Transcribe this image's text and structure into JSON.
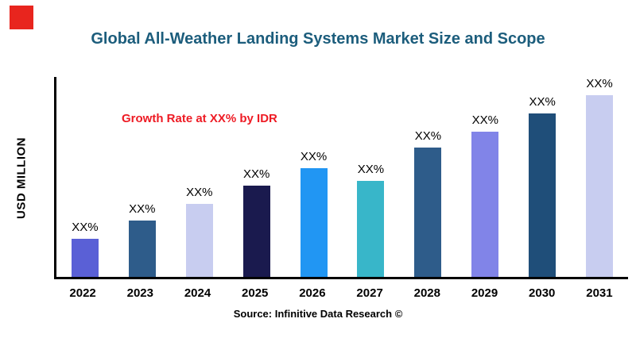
{
  "page": {
    "source": "Source: Infinitive Data Research ©"
  },
  "chart_data": {
    "type": "bar",
    "title": "Global All-Weather Landing Systems Market Size and Scope",
    "xlabel": "",
    "ylabel": "USD MILLION",
    "annotation": "Growth Rate at XX% by IDR",
    "categories": [
      "2022",
      "2023",
      "2024",
      "2025",
      "2026",
      "2027",
      "2028",
      "2029",
      "2030",
      "2031"
    ],
    "values": [
      21,
      31,
      40,
      50,
      60,
      53,
      71,
      80,
      90,
      100
    ],
    "bar_labels": [
      "XX%",
      "XX%",
      "XX%",
      "XX%",
      "XX%",
      "XX%",
      "XX%",
      "XX%",
      "XX%",
      "XX%"
    ],
    "colors": [
      "#5a60d6",
      "#2e5c8a",
      "#c8cdf0",
      "#1a1a4e",
      "#2196f3",
      "#38b6c9",
      "#2e5c8a",
      "#8184e8",
      "#1f4e79",
      "#c8cdf0"
    ],
    "ylim": [
      0,
      110
    ],
    "grid": false,
    "legend": false,
    "title_color": "#1c5d7c",
    "annotation_color": "#ee1b24",
    "brand_square_color": "#e8251e",
    "axis_color": "#000000"
  }
}
